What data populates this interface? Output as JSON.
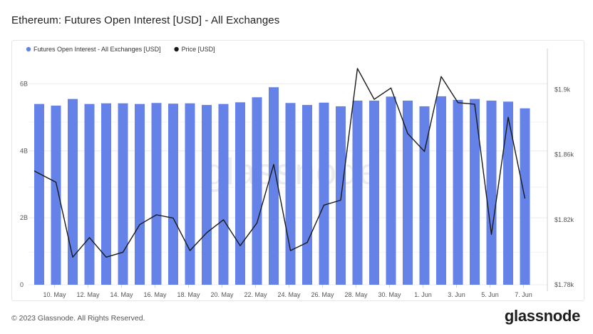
{
  "title": "Ethereum: Futures Open Interest [USD] - All Exchanges",
  "footer": "© 2023 Glassnode. All Rights Reserved.",
  "brand": "glassnode",
  "watermark": "glassnode",
  "colors": {
    "bar": "#6482e8",
    "price_line": "#1a1a1a",
    "grid": "#ececec"
  },
  "chart_data": {
    "type": "bar",
    "legend": [
      {
        "label": "Futures Open Interest - All Exchanges [USD]",
        "color": "#6482e8",
        "marker": "dot"
      },
      {
        "label": "Price [USD]",
        "color": "#1a1a1a",
        "marker": "dot"
      }
    ],
    "x_tick_labels": [
      "10. May",
      "12. May",
      "14. May",
      "16. May",
      "18. May",
      "20. May",
      "22. May",
      "24. May",
      "26. May",
      "28. May",
      "30. May",
      "1. Jun",
      "3. Jun",
      "5. Jun",
      "7. Jun"
    ],
    "y_left": {
      "ticks": [
        "0",
        "2B",
        "4B",
        "6B"
      ],
      "range": [
        0,
        6.8
      ]
    },
    "y_right": {
      "ticks": [
        "$1.78k",
        "$1.82k",
        "$1.86k",
        "$1.9k"
      ],
      "range": [
        1780,
        1920
      ]
    },
    "series": [
      {
        "name": "Futures Open Interest - All Exchanges [USD]",
        "type": "bar",
        "axis": "left",
        "unit": "B",
        "values": [
          5.4,
          5.35,
          5.55,
          5.4,
          5.42,
          5.42,
          5.4,
          5.43,
          5.41,
          5.42,
          5.37,
          5.4,
          5.45,
          5.6,
          5.9,
          5.43,
          5.37,
          5.44,
          5.33,
          5.5,
          5.5,
          5.62,
          5.5,
          5.33,
          5.63,
          5.52,
          5.55,
          5.5,
          5.47,
          5.27
        ]
      },
      {
        "name": "Price [USD]",
        "type": "line",
        "axis": "right",
        "unit": "USD",
        "values": [
          1850,
          1843,
          1797,
          1809,
          1797,
          1800,
          1817,
          1823,
          1821,
          1801,
          1812,
          1820,
          1804,
          1818,
          1854,
          1801,
          1806,
          1829,
          1832,
          1913,
          1894,
          1901,
          1873,
          1862,
          1908,
          1892,
          1891,
          1811,
          1883,
          1833
        ]
      }
    ]
  }
}
